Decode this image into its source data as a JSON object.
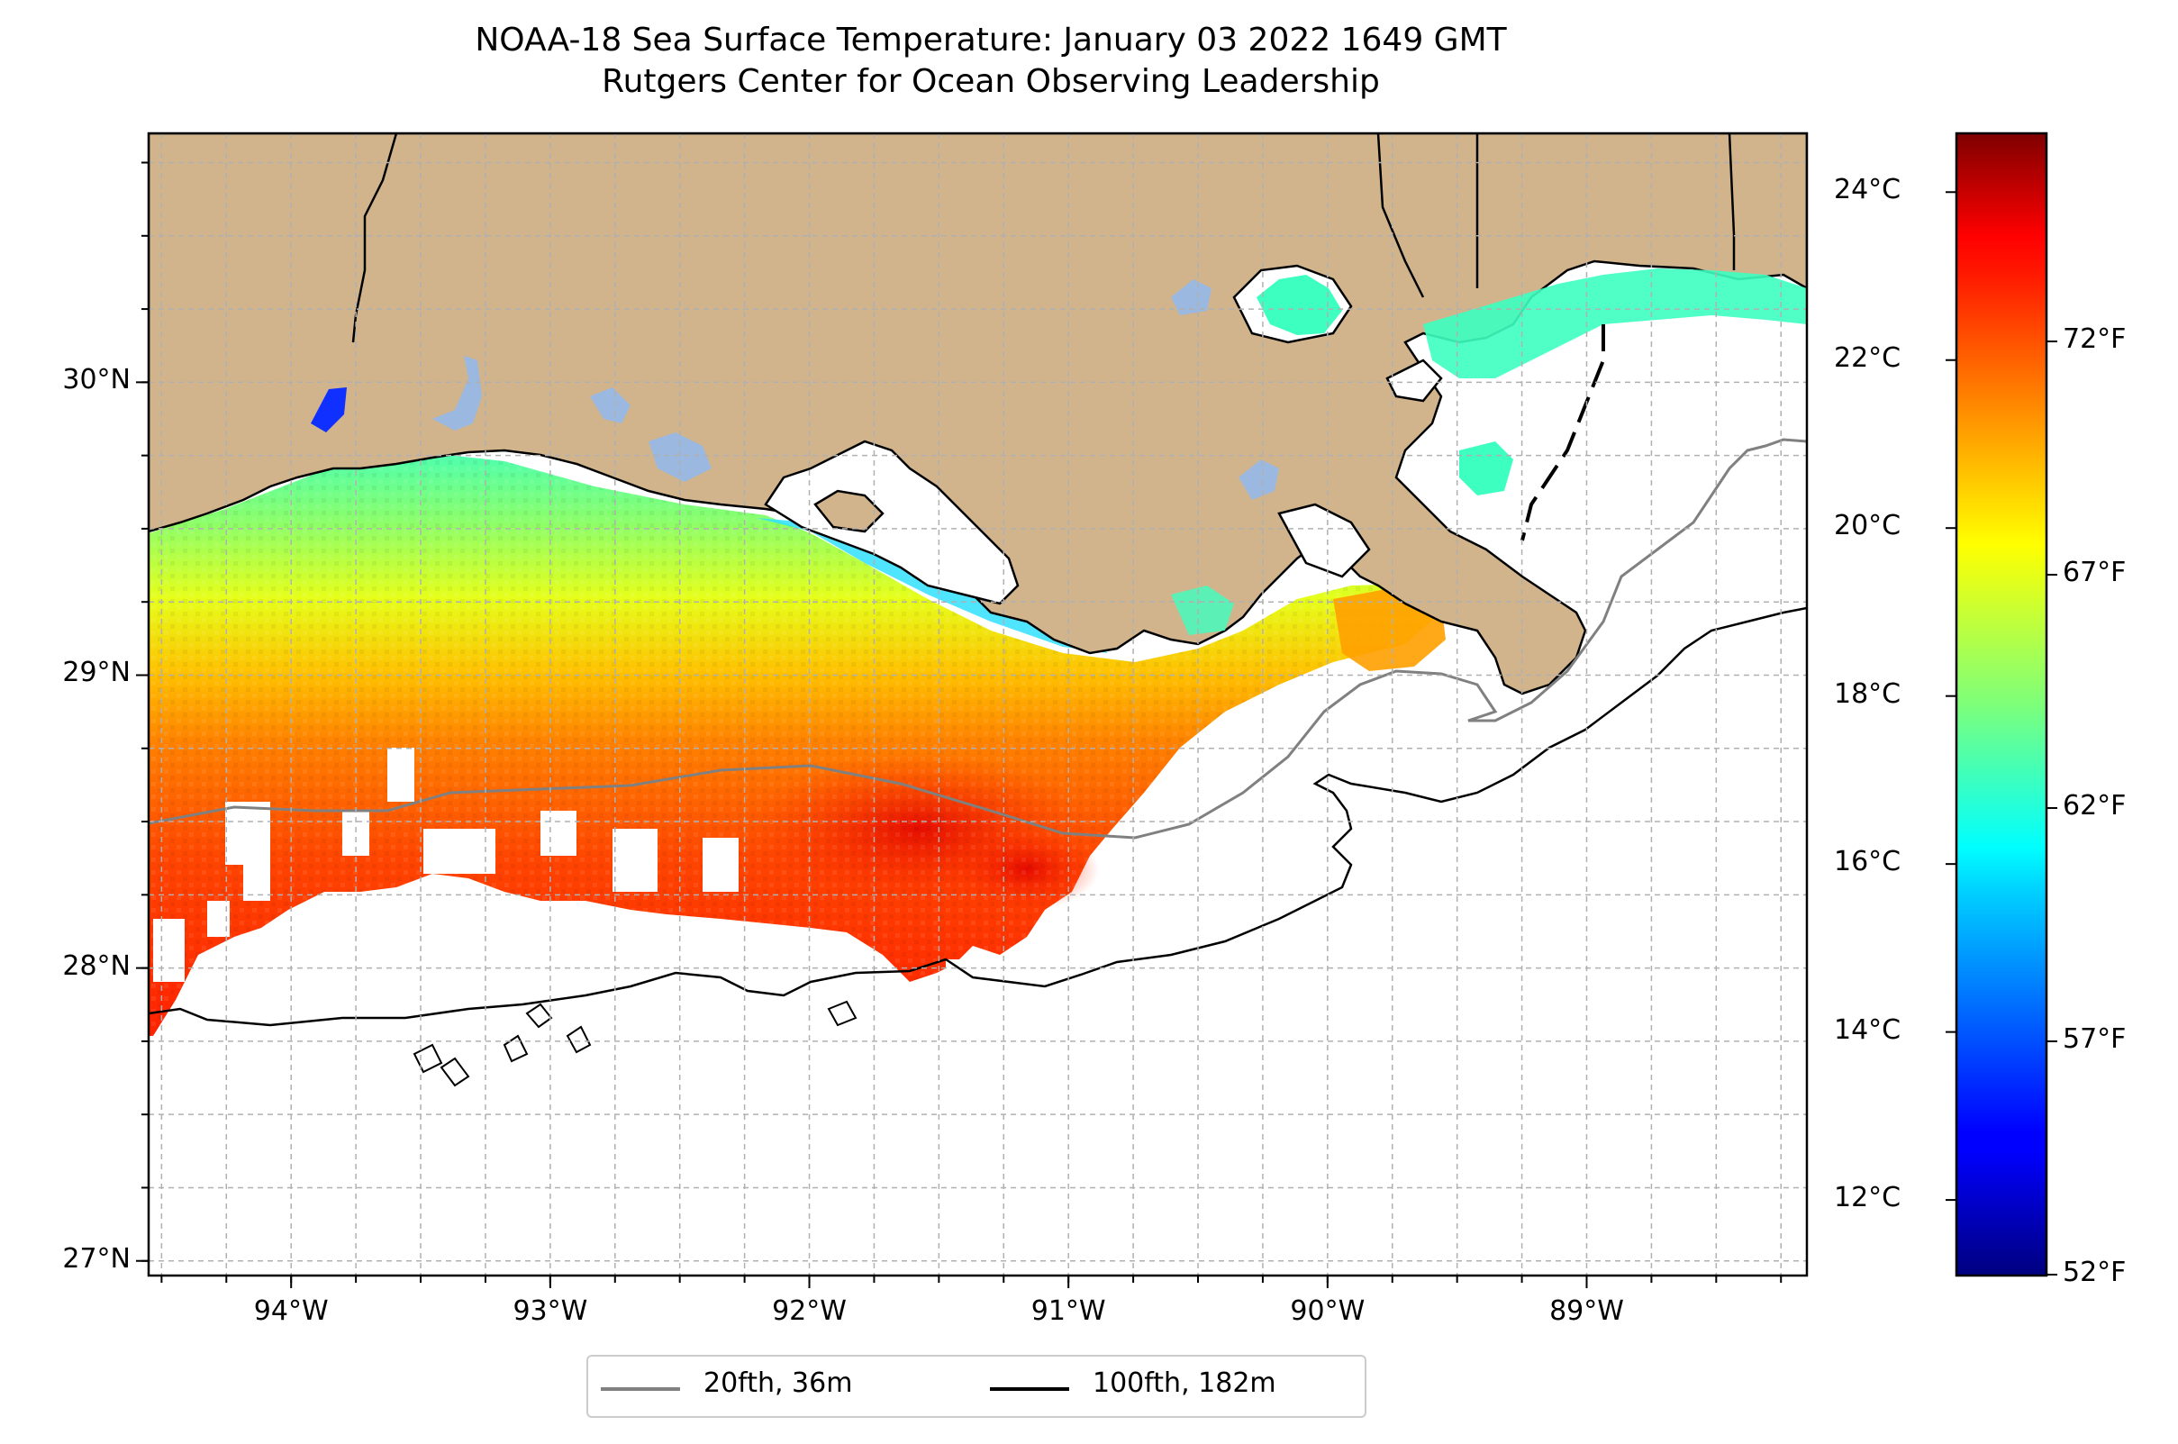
{
  "title": {
    "line1": "NOAA-18 Sea Surface Temperature: January 03 2022 1649 GMT",
    "line2": "Rutgers Center for Ocean Observing Leadership"
  },
  "map": {
    "lon_range": [
      -94.55,
      -88.15
    ],
    "lat_range": [
      26.95,
      30.85
    ],
    "lat_ticks": [
      {
        "value": 27,
        "label": "27°N"
      },
      {
        "value": 28,
        "label": "28°N"
      },
      {
        "value": 29,
        "label": "29°N"
      },
      {
        "value": 30,
        "label": "30°N"
      }
    ],
    "lon_ticks": [
      {
        "value": -94,
        "label": "94°W"
      },
      {
        "value": -93,
        "label": "93°W"
      },
      {
        "value": -92,
        "label": "92°W"
      },
      {
        "value": -91,
        "label": "91°W"
      },
      {
        "value": -90,
        "label": "90°W"
      },
      {
        "value": -89,
        "label": "89°W"
      }
    ],
    "grid": true,
    "land_color": "#d2b48c",
    "water_body_color": "#9ab8e0"
  },
  "colorbar": {
    "colormap": "jet",
    "celsius_range": [
      11.1,
      24.7
    ],
    "celsius_labels": [
      {
        "value": 12,
        "label": "12°C"
      },
      {
        "value": 14,
        "label": "14°C"
      },
      {
        "value": 16,
        "label": "16°C"
      },
      {
        "value": 18,
        "label": "18°C"
      },
      {
        "value": 20,
        "label": "20°C"
      },
      {
        "value": 22,
        "label": "22°C"
      },
      {
        "value": 24,
        "label": "24°C"
      }
    ],
    "fahrenheit_labels": [
      {
        "value": 52,
        "label": "52°F"
      },
      {
        "value": 57,
        "label": "57°F"
      },
      {
        "value": 62,
        "label": "62°F"
      },
      {
        "value": 67,
        "label": "67°F"
      },
      {
        "value": 72,
        "label": "72°F"
      }
    ]
  },
  "legend": {
    "items": [
      {
        "label": "20fth, 36m",
        "color": "#808080"
      },
      {
        "label": "100fth, 182m",
        "color": "#000000"
      }
    ]
  }
}
